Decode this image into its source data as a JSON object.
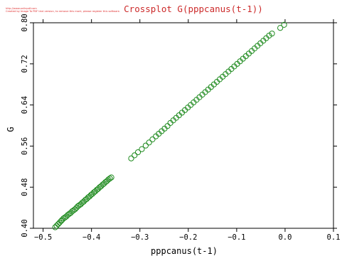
{
  "watermark": {
    "line1": "http://www.onlinpdf.com",
    "line2": "Created by Image To PDF trial version, to remove this mark, please register this software."
  },
  "chart_data": {
    "type": "scatter",
    "title": "Crossplot G(pppcanus(t-1))",
    "xlabel": "pppcanus(t-1)",
    "ylabel": "G",
    "xlim": [
      -0.52,
      0.1
    ],
    "ylim": [
      0.4,
      0.8
    ],
    "xticks": [
      -0.5,
      -0.4,
      -0.3,
      -0.2,
      -0.1,
      0.0,
      0.1
    ],
    "xtick_labels": [
      "−0.5",
      "−0.4",
      "−0.3",
      "−0.2",
      "−0.1",
      "0.0",
      "0.1"
    ],
    "yticks": [
      0.4,
      0.48,
      0.56,
      0.64,
      0.72,
      0.8
    ],
    "ytick_labels": [
      "0.40",
      "0.48",
      "0.56",
      "0.64",
      "0.72",
      "0.80"
    ],
    "grid": false,
    "colors": {
      "marker": "#1e8a1e",
      "title": "#cc2a2a",
      "axis": "#000000"
    },
    "points": [
      [
        -0.475,
        0.402
      ],
      [
        -0.472,
        0.405
      ],
      [
        -0.469,
        0.408
      ],
      [
        -0.466,
        0.411
      ],
      [
        -0.463,
        0.414
      ],
      [
        -0.461,
        0.416
      ],
      [
        -0.458,
        0.419
      ],
      [
        -0.455,
        0.421
      ],
      [
        -0.452,
        0.423
      ],
      [
        -0.449,
        0.426
      ],
      [
        -0.446,
        0.428
      ],
      [
        -0.443,
        0.43
      ],
      [
        -0.44,
        0.433
      ],
      [
        -0.437,
        0.435
      ],
      [
        -0.434,
        0.437
      ],
      [
        -0.431,
        0.44
      ],
      [
        -0.428,
        0.443
      ],
      [
        -0.425,
        0.445
      ],
      [
        -0.422,
        0.447
      ],
      [
        -0.419,
        0.45
      ],
      [
        -0.416,
        0.452
      ],
      [
        -0.413,
        0.455
      ],
      [
        -0.41,
        0.457
      ],
      [
        -0.407,
        0.46
      ],
      [
        -0.404,
        0.462
      ],
      [
        -0.401,
        0.465
      ],
      [
        -0.398,
        0.467
      ],
      [
        -0.395,
        0.47
      ],
      [
        -0.392,
        0.472
      ],
      [
        -0.389,
        0.475
      ],
      [
        -0.386,
        0.477
      ],
      [
        -0.383,
        0.48
      ],
      [
        -0.38,
        0.482
      ],
      [
        -0.377,
        0.485
      ],
      [
        -0.374,
        0.487
      ],
      [
        -0.371,
        0.49
      ],
      [
        -0.368,
        0.492
      ],
      [
        -0.365,
        0.495
      ],
      [
        -0.362,
        0.497
      ],
      [
        -0.359,
        0.499
      ],
      [
        -0.318,
        0.536
      ],
      [
        -0.311,
        0.542
      ],
      [
        -0.304,
        0.548
      ],
      [
        -0.296,
        0.554
      ],
      [
        -0.288,
        0.561
      ],
      [
        -0.281,
        0.567
      ],
      [
        -0.274,
        0.573
      ],
      [
        -0.267,
        0.579
      ],
      [
        -0.261,
        0.584
      ],
      [
        -0.255,
        0.589
      ],
      [
        -0.249,
        0.594
      ],
      [
        -0.243,
        0.599
      ],
      [
        -0.237,
        0.605
      ],
      [
        -0.231,
        0.61
      ],
      [
        -0.225,
        0.615
      ],
      [
        -0.219,
        0.62
      ],
      [
        -0.213,
        0.625
      ],
      [
        -0.207,
        0.63
      ],
      [
        -0.201,
        0.635
      ],
      [
        -0.195,
        0.64
      ],
      [
        -0.189,
        0.645
      ],
      [
        -0.183,
        0.65
      ],
      [
        -0.177,
        0.655
      ],
      [
        -0.171,
        0.66
      ],
      [
        -0.165,
        0.665
      ],
      [
        -0.159,
        0.67
      ],
      [
        -0.153,
        0.675
      ],
      [
        -0.147,
        0.68
      ],
      [
        -0.141,
        0.685
      ],
      [
        -0.135,
        0.69
      ],
      [
        -0.129,
        0.695
      ],
      [
        -0.123,
        0.7
      ],
      [
        -0.117,
        0.705
      ],
      [
        -0.111,
        0.71
      ],
      [
        -0.105,
        0.715
      ],
      [
        -0.099,
        0.72
      ],
      [
        -0.093,
        0.725
      ],
      [
        -0.087,
        0.73
      ],
      [
        -0.081,
        0.735
      ],
      [
        -0.075,
        0.74
      ],
      [
        -0.069,
        0.745
      ],
      [
        -0.063,
        0.75
      ],
      [
        -0.057,
        0.755
      ],
      [
        -0.051,
        0.76
      ],
      [
        -0.045,
        0.765
      ],
      [
        -0.039,
        0.77
      ],
      [
        -0.033,
        0.775
      ],
      [
        -0.027,
        0.779
      ],
      [
        -0.01,
        0.79
      ],
      [
        -0.002,
        0.796
      ]
    ]
  }
}
